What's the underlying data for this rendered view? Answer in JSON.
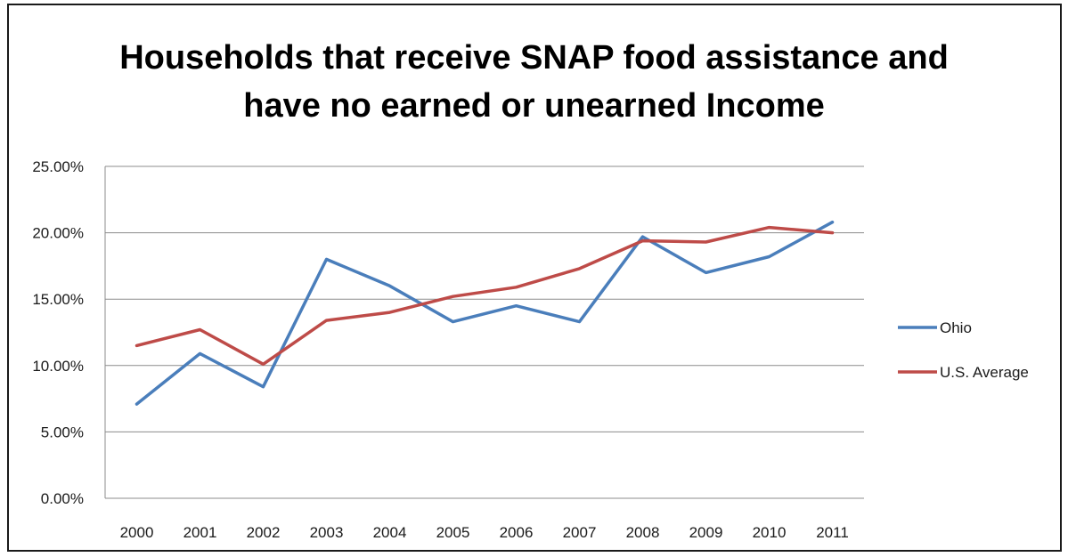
{
  "chart_data": {
    "type": "line",
    "title": "Households that receive SNAP food assistance and\nhave no earned or unearned Income",
    "xlabel": "",
    "ylabel": "",
    "categories": [
      "2000",
      "2001",
      "2002",
      "2003",
      "2004",
      "2005",
      "2006",
      "2007",
      "2008",
      "2009",
      "2010",
      "2011"
    ],
    "ylim": [
      0,
      25
    ],
    "yticks": [
      0,
      5,
      10,
      15,
      20,
      25
    ],
    "ytick_labels": [
      "0.00%",
      "5.00%",
      "10.00%",
      "15.00%",
      "20.00%",
      "25.00%"
    ],
    "grid": true,
    "legend_position": "right",
    "series": [
      {
        "name": "Ohio",
        "color": "#4a7ebb",
        "values": [
          7.1,
          10.9,
          8.4,
          18.0,
          16.0,
          13.3,
          14.5,
          13.3,
          19.7,
          17.0,
          18.2,
          20.8
        ]
      },
      {
        "name": "U.S. Average",
        "color": "#be4b48",
        "values": [
          11.5,
          12.7,
          10.1,
          13.4,
          14.0,
          15.2,
          15.9,
          17.3,
          19.4,
          19.3,
          20.4,
          20.0
        ]
      }
    ]
  }
}
